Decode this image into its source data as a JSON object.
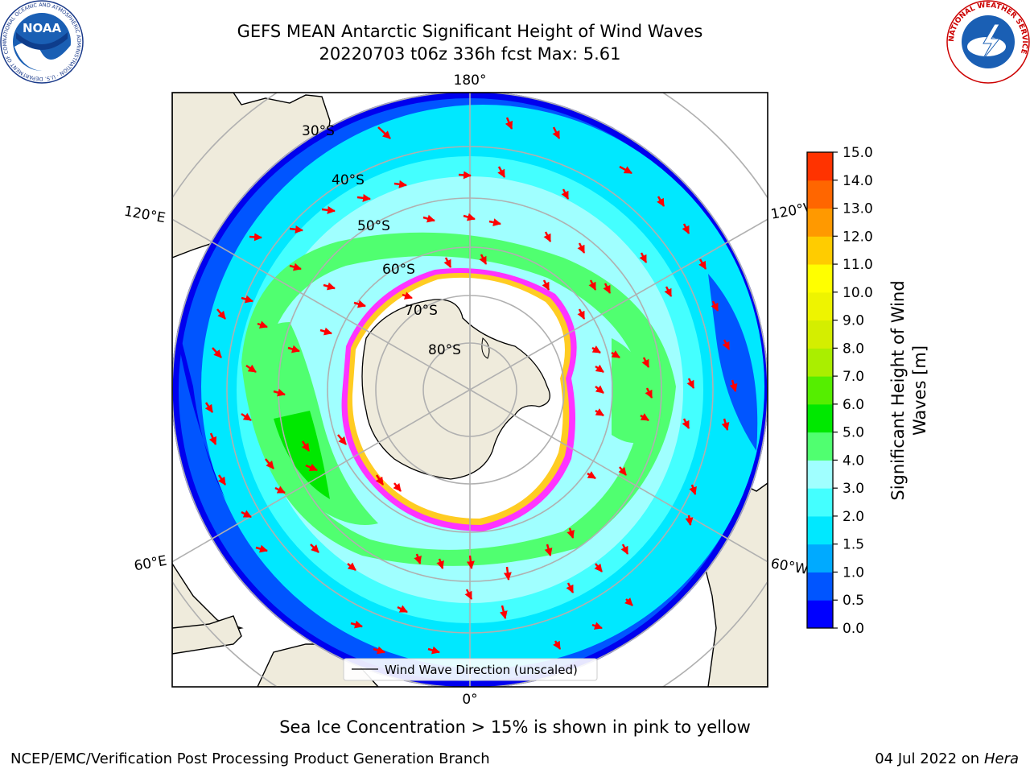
{
  "header": {
    "title_line1": "GEFS MEAN Antarctic Significant Height of Wind Waves",
    "title_line2": "20220703 t06z 336h fcst   Max: 5.61",
    "noaa_logo_text": "NOAA",
    "noaa_ring_text": "NATIONAL OCEANIC AND ATMOSPHERIC ADMINISTRATION · U.S. DEPARTMENT OF COMMERCE",
    "nws_ring_text": "NATIONAL WEATHER SERVICE"
  },
  "map": {
    "longitude_labels": {
      "top": "180°",
      "bottom": "0°",
      "upper_left": "120°E",
      "lower_left": "60°E",
      "upper_right": "120°W",
      "lower_right": "60°W"
    },
    "latitude_labels": [
      "30°S",
      "40°S",
      "50°S",
      "60°S",
      "70°S",
      "80°S"
    ],
    "legend_label": "Wind Wave Direction (unscaled)"
  },
  "colorbar": {
    "label_line1": "Significant Height of Wind",
    "label_line2": "Waves [m]",
    "ticks": [
      "0.0",
      "0.5",
      "1.0",
      "1.5",
      "2.0",
      "3.0",
      "4.0",
      "5.0",
      "6.0",
      "7.0",
      "8.0",
      "9.0",
      "10.0",
      "11.0",
      "12.0",
      "13.0",
      "14.0",
      "15.0"
    ],
    "colors": [
      "#0000ff",
      "#0055ff",
      "#00aaff",
      "#00e8ff",
      "#44ffff",
      "#a0ffff",
      "#50ff70",
      "#00e800",
      "#55ee00",
      "#aaee00",
      "#d4ee00",
      "#eef400",
      "#ffff00",
      "#ffcc00",
      "#ff9900",
      "#ff6600",
      "#ff3300",
      "#ff0000"
    ]
  },
  "footer": {
    "ice_note": "Sea Ice Concentration > 15% is shown in pink to yellow",
    "credit": "NCEP/EMC/Verification Post Processing Product Generation Branch",
    "date": "04 Jul 2022 on",
    "host": "Hera"
  }
}
